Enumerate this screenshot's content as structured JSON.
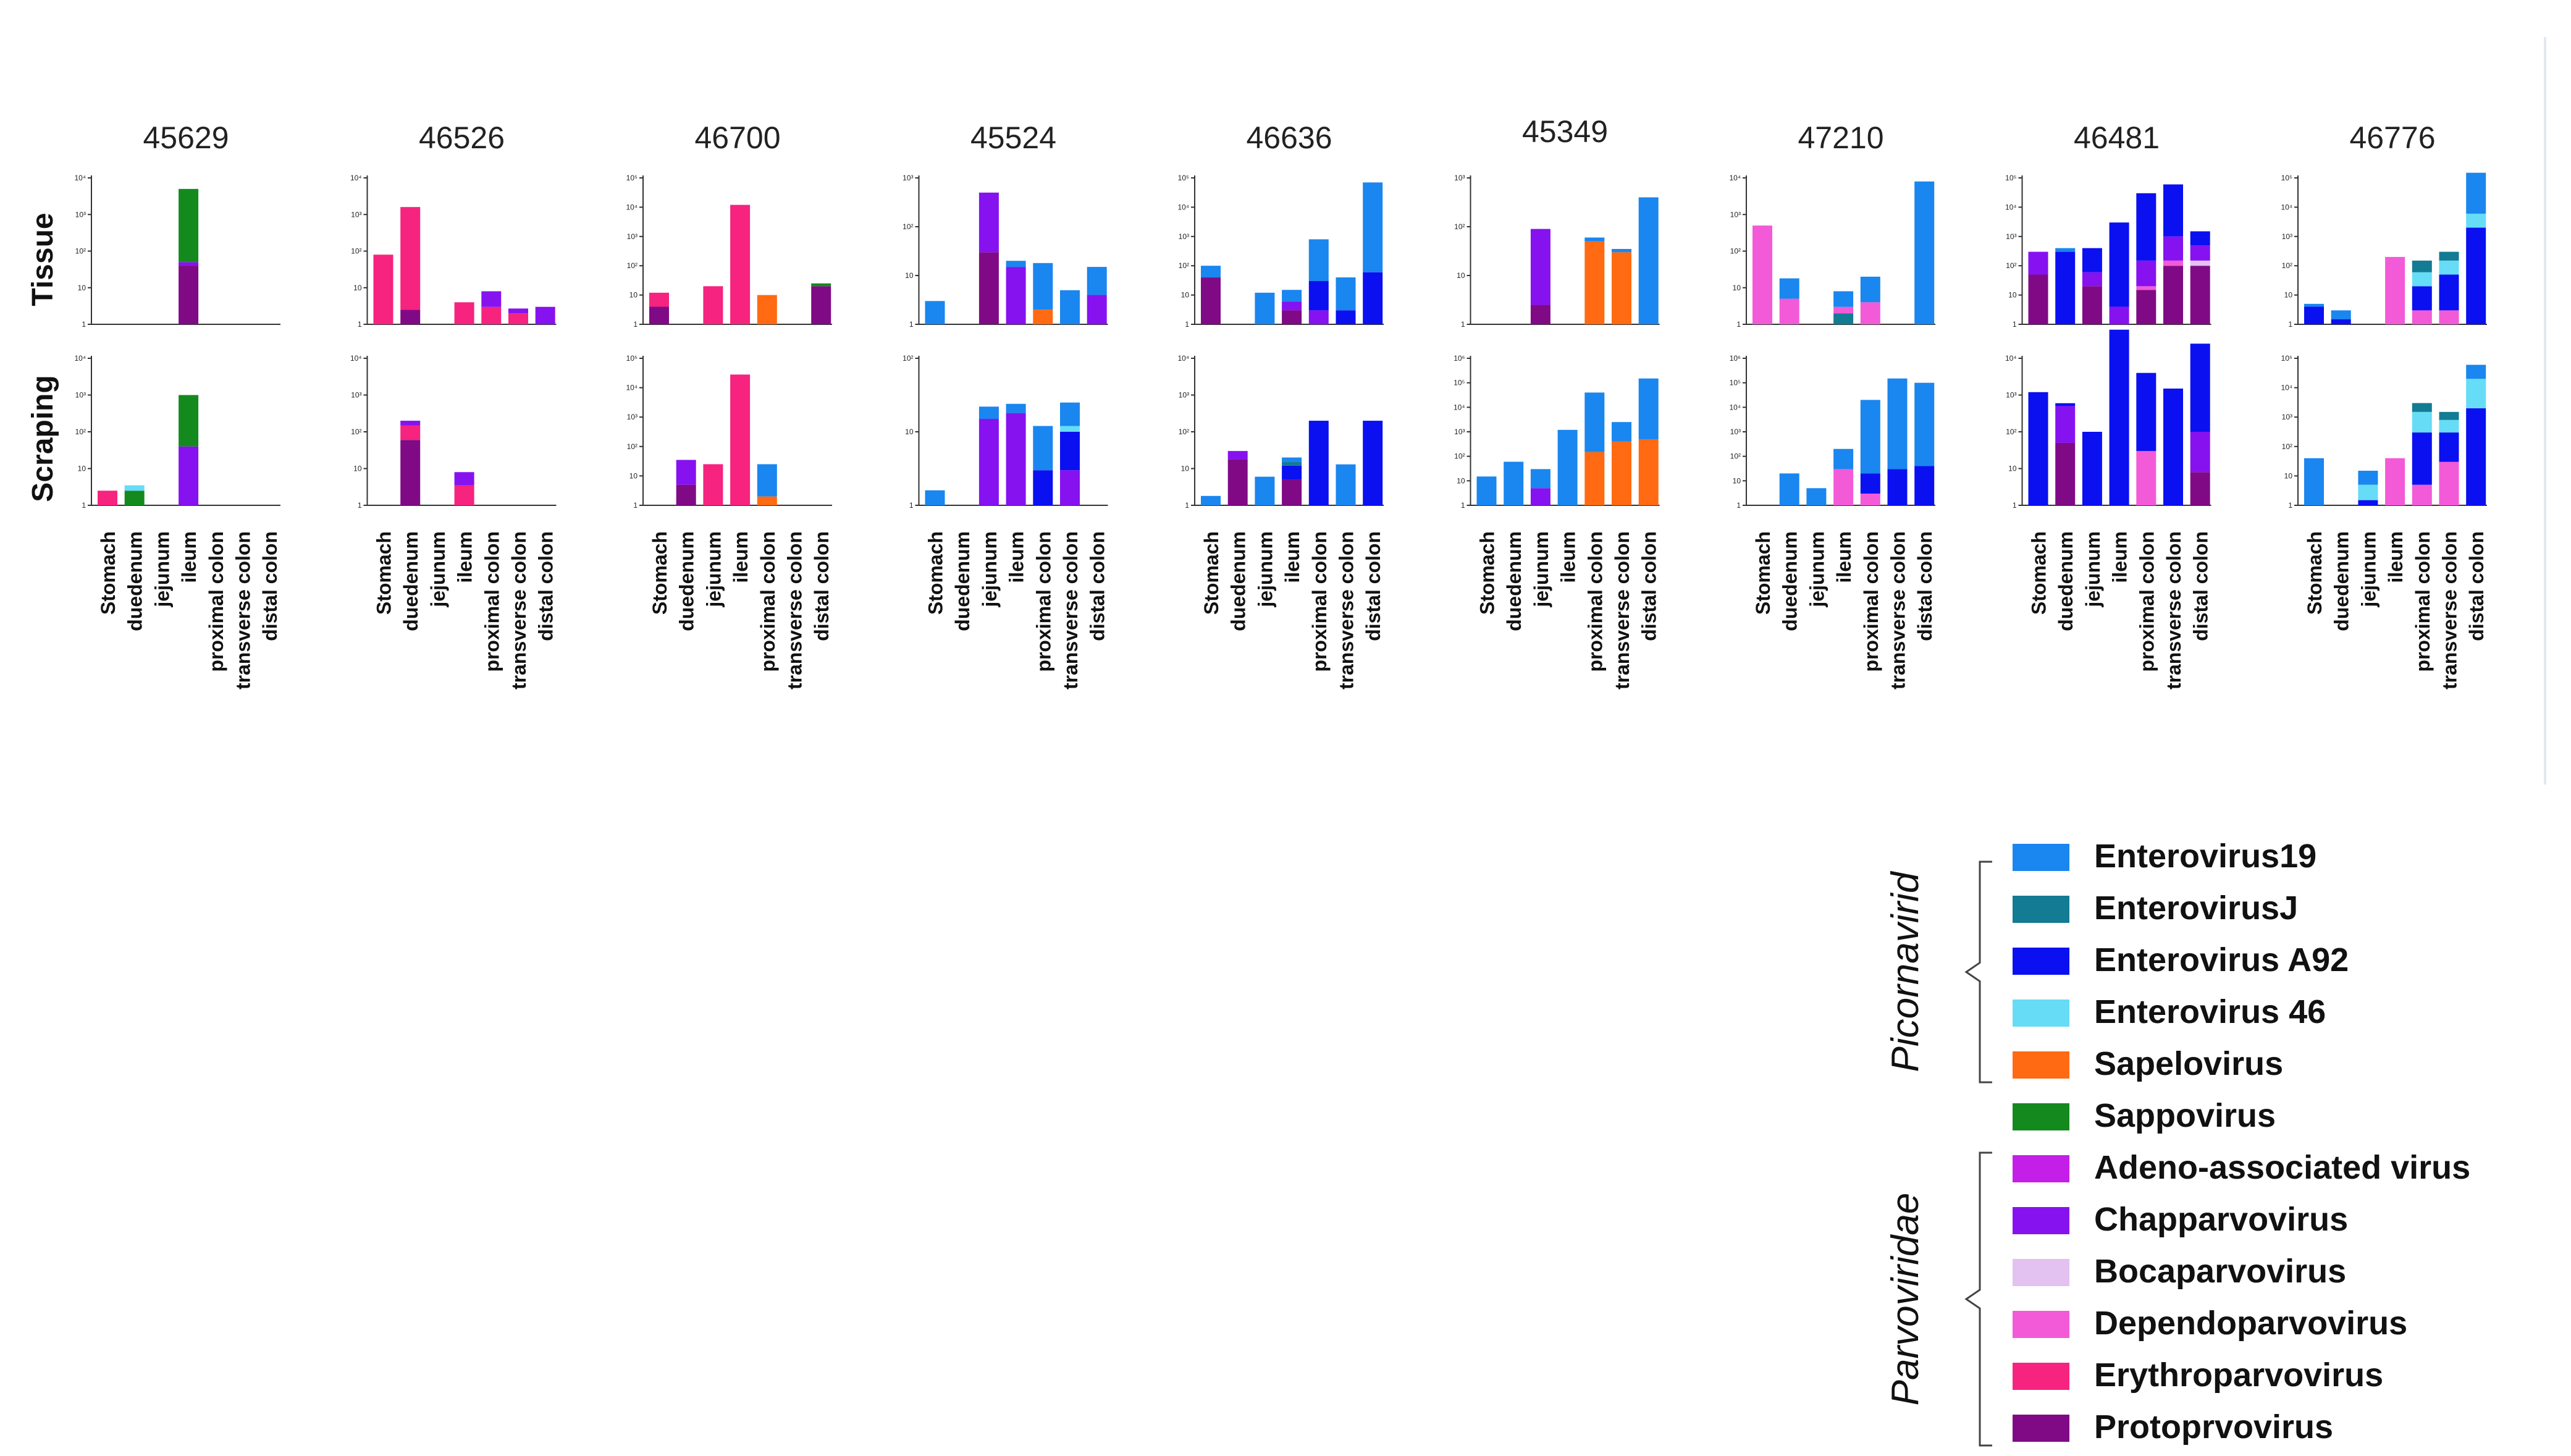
{
  "chart_data": {
    "type": "bar",
    "stacked": true,
    "y_scale": "log10",
    "row_labels": [
      "Tissue",
      "Scraping"
    ],
    "categories": [
      "Stomach",
      "duedenum",
      "jejunum",
      "ileum",
      "proximal colon",
      "transverse colon",
      "distal colon"
    ],
    "families": [
      {
        "name": "Picornavirid",
        "members": [
          0,
          1,
          2,
          3,
          4,
          5
        ]
      },
      {
        "name": "Parvoviridae",
        "members": [
          6,
          7,
          8,
          9,
          10,
          11
        ]
      }
    ],
    "viruses": [
      {
        "name": "Enterovirus19",
        "color": "#1a86ef"
      },
      {
        "name": "EnterovirusJ",
        "color": "#137b93"
      },
      {
        "name": "Enterovirus A92",
        "color": "#0a10f0"
      },
      {
        "name": "Enterovirus 46",
        "color": "#66dcf6"
      },
      {
        "name": "Sapelovirus",
        "color": "#ff6a12"
      },
      {
        "name": "Sappovirus",
        "color": "#148a1e"
      },
      {
        "name": "Adeno-associated virus",
        "color": "#c41fe9"
      },
      {
        "name": "Chapparvovirus",
        "color": "#8612f0"
      },
      {
        "name": "Bocaparvovirus",
        "color": "#e3c1f0"
      },
      {
        "name": "Dependoparvovirus",
        "color": "#f35ad8"
      },
      {
        "name": "Erythroparvovirus",
        "color": "#f6237f"
      },
      {
        "name": "Protoprvovirus",
        "color": "#800a85"
      }
    ],
    "panels": [
      {
        "title": "45629",
        "tissue": {
          "ymax": 4,
          "bars": [
            [],
            [],
            [],
            [
              [
                11,
                40
              ],
              [
                7,
                50
              ],
              [
                5,
                5000
              ]
            ],
            [],
            [],
            []
          ]
        },
        "scraping": {
          "ymax": 4,
          "bars": [
            [
              [
                10,
                2.5
              ]
            ],
            [
              [
                5,
                2.5
              ],
              [
                3,
                3.5
              ]
            ],
            [],
            [
              [
                7,
                40
              ],
              [
                5,
                1000
              ]
            ],
            [],
            [],
            []
          ]
        }
      },
      {
        "title": "46526",
        "tissue": {
          "ymax": 4,
          "bars": [
            [
              [
                10,
                80
              ]
            ],
            [
              [
                11,
                2.5
              ],
              [
                10,
                1600
              ]
            ],
            [],
            [
              [
                10,
                4
              ]
            ],
            [
              [
                10,
                3
              ],
              [
                7,
                8
              ]
            ],
            [
              [
                10,
                2
              ],
              [
                7,
                2.7
              ]
            ],
            [
              [
                7,
                3
              ]
            ]
          ]
        },
        "scraping": {
          "ymax": 4,
          "bars": [
            [],
            [
              [
                11,
                60
              ],
              [
                10,
                150
              ],
              [
                7,
                200
              ]
            ],
            [],
            [
              [
                10,
                3.5
              ],
              [
                7,
                8
              ]
            ],
            [],
            [],
            []
          ]
        }
      },
      {
        "title": "46700",
        "tissue": {
          "ymax": 5,
          "bars": [
            [
              [
                11,
                4
              ],
              [
                10,
                12
              ]
            ],
            [],
            [
              [
                10,
                20
              ]
            ],
            [
              [
                10,
                12000
              ]
            ],
            [
              [
                4,
                10
              ]
            ],
            [],
            [
              [
                11,
                20
              ],
              [
                5,
                25
              ]
            ]
          ]
        },
        "scraping": {
          "ymax": 5,
          "bars": [
            [],
            [
              [
                11,
                5
              ],
              [
                7,
                35
              ]
            ],
            [
              [
                10,
                25
              ]
            ],
            [
              [
                10,
                28000
              ]
            ],
            [
              [
                4,
                2
              ],
              [
                0,
                25
              ]
            ],
            [],
            []
          ]
        }
      },
      {
        "title": "45524",
        "tissue": {
          "ymax": 3,
          "bars": [
            [
              [
                0,
                3
              ]
            ],
            [],
            [
              [
                11,
                30
              ],
              [
                7,
                500
              ]
            ],
            [
              [
                7,
                15
              ],
              [
                0,
                20
              ]
            ],
            [
              [
                4,
                2
              ],
              [
                0,
                18
              ]
            ],
            [
              [
                0,
                5
              ]
            ],
            [
              [
                7,
                4
              ],
              [
                0,
                15
              ]
            ]
          ]
        },
        "scraping": {
          "ymax": 2,
          "bars": [
            [
              [
                0,
                1.6
              ]
            ],
            [],
            [
              [
                7,
                15
              ],
              [
                0,
                22
              ]
            ],
            [
              [
                7,
                18
              ],
              [
                0,
                24
              ]
            ],
            [
              [
                2,
                3
              ],
              [
                0,
                12
              ]
            ],
            [
              [
                7,
                3
              ],
              [
                2,
                10
              ],
              [
                3,
                12
              ],
              [
                0,
                25
              ]
            ],
            []
          ]
        }
      },
      {
        "title": "46636",
        "tissue": {
          "ymax": 5,
          "bars": [
            [
              [
                11,
                40
              ],
              [
                0,
                100
              ]
            ],
            [],
            [
              [
                0,
                12
              ]
            ],
            [
              [
                11,
                3
              ],
              [
                7,
                6
              ],
              [
                0,
                15
              ]
            ],
            [
              [
                7,
                3
              ],
              [
                2,
                30
              ],
              [
                0,
                800
              ]
            ],
            [
              [
                2,
                3
              ],
              [
                0,
                40
              ]
            ],
            [
              [
                2,
                60
              ],
              [
                0,
                70000
              ]
            ]
          ]
        },
        "scraping": {
          "ymax": 4,
          "bars": [
            [
              [
                0,
                1.8
              ]
            ],
            [
              [
                11,
                18
              ],
              [
                7,
                30
              ]
            ],
            [
              [
                0,
                6
              ]
            ],
            [
              [
                11,
                5
              ],
              [
                2,
                12
              ],
              [
                1,
                15
              ],
              [
                0,
                20
              ]
            ],
            [
              [
                2,
                200
              ]
            ],
            [
              [
                0,
                13
              ]
            ],
            [
              [
                2,
                200
              ]
            ]
          ]
        }
      },
      {
        "title": "45349",
        "tissue": {
          "ymax": 3,
          "bars": [
            [],
            [],
            [
              [
                11,
                2.5
              ],
              [
                7,
                90
              ]
            ],
            [],
            [
              [
                4,
                50
              ],
              [
                0,
                60
              ]
            ],
            [
              [
                4,
                30
              ],
              [
                0,
                35
              ]
            ],
            [
              [
                0,
                400
              ]
            ]
          ]
        },
        "scraping": {
          "ymax": 6,
          "bars": [
            [
              [
                0,
                15
              ]
            ],
            [
              [
                0,
                60
              ]
            ],
            [
              [
                7,
                5
              ],
              [
                0,
                30
              ]
            ],
            [
              [
                0,
                1200
              ]
            ],
            [
              [
                4,
                150
              ],
              [
                0,
                40000
              ]
            ],
            [
              [
                4,
                400
              ],
              [
                0,
                2500
              ]
            ],
            [
              [
                4,
                500
              ],
              [
                0,
                150000
              ]
            ]
          ]
        }
      },
      {
        "title": "47210",
        "tissue": {
          "ymax": 4,
          "bars": [
            [
              [
                9,
                500
              ]
            ],
            [
              [
                9,
                5
              ],
              [
                0,
                18
              ]
            ],
            [],
            [
              [
                1,
                2
              ],
              [
                9,
                3
              ],
              [
                0,
                8
              ]
            ],
            [
              [
                9,
                4
              ],
              [
                0,
                20
              ]
            ],
            [],
            [
              [
                0,
                8000
              ]
            ]
          ]
        },
        "scraping": {
          "ymax": 6,
          "bars": [
            [],
            [
              [
                0,
                20
              ]
            ],
            [
              [
                0,
                5
              ]
            ],
            [
              [
                9,
                30
              ],
              [
                0,
                200
              ]
            ],
            [
              [
                9,
                3
              ],
              [
                2,
                20
              ],
              [
                0,
                20000
              ]
            ],
            [
              [
                2,
                30
              ],
              [
                0,
                150000
              ]
            ],
            [
              [
                2,
                40
              ],
              [
                0,
                100000
              ]
            ]
          ]
        }
      },
      {
        "title": "46481",
        "tissue": {
          "ymax": 5,
          "bars": [
            [
              [
                11,
                50
              ],
              [
                7,
                300
              ]
            ],
            [
              [
                2,
                300
              ],
              [
                0,
                400
              ]
            ],
            [
              [
                11,
                20
              ],
              [
                7,
                60
              ],
              [
                2,
                400
              ]
            ],
            [
              [
                7,
                4
              ],
              [
                2,
                3000
              ]
            ],
            [
              [
                11,
                15
              ],
              [
                9,
                20
              ],
              [
                7,
                150
              ],
              [
                2,
                30000
              ]
            ],
            [
              [
                11,
                100
              ],
              [
                9,
                150
              ],
              [
                7,
                1000
              ],
              [
                2,
                60000
              ]
            ],
            [
              [
                11,
                100
              ],
              [
                8,
                150
              ],
              [
                7,
                500
              ],
              [
                2,
                1500
              ]
            ]
          ]
        },
        "scraping": {
          "ymax": 4,
          "bars": [
            [
              [
                2,
                1200
              ]
            ],
            [
              [
                11,
                50
              ],
              [
                7,
                500
              ],
              [
                2,
                600
              ]
            ],
            [
              [
                2,
                100
              ]
            ],
            [
              [
                2,
                60000
              ]
            ],
            [
              [
                9,
                30
              ],
              [
                2,
                4000
              ]
            ],
            [
              [
                2,
                1500
              ]
            ],
            [
              [
                11,
                8
              ],
              [
                7,
                100
              ],
              [
                2,
                25000
              ]
            ]
          ]
        }
      },
      {
        "title": "46776",
        "tissue": {
          "ymax": 5,
          "bars": [
            [
              [
                2,
                4
              ],
              [
                0,
                5
              ]
            ],
            [
              [
                2,
                1.5
              ],
              [
                0,
                3
              ]
            ],
            [],
            [
              [
                9,
                200
              ]
            ],
            [
              [
                9,
                3
              ],
              [
                2,
                20
              ],
              [
                3,
                60
              ],
              [
                1,
                150
              ]
            ],
            [
              [
                9,
                3
              ],
              [
                2,
                50
              ],
              [
                3,
                150
              ],
              [
                1,
                300
              ]
            ],
            [
              [
                2,
                2000
              ],
              [
                3,
                6000
              ],
              [
                0,
                150000
              ]
            ]
          ]
        },
        "scraping": {
          "ymax": 5,
          "bars": [
            [
              [
                0,
                40
              ]
            ],
            [],
            [
              [
                2,
                1.5
              ],
              [
                3,
                5
              ],
              [
                0,
                15
              ]
            ],
            [
              [
                9,
                40
              ]
            ],
            [
              [
                9,
                5
              ],
              [
                2,
                300
              ],
              [
                3,
                1500
              ],
              [
                1,
                3000
              ]
            ],
            [
              [
                9,
                30
              ],
              [
                2,
                300
              ],
              [
                3,
                800
              ],
              [
                1,
                1500
              ]
            ],
            [
              [
                2,
                2000
              ],
              [
                3,
                20000
              ],
              [
                0,
                60000
              ]
            ]
          ]
        }
      }
    ]
  }
}
